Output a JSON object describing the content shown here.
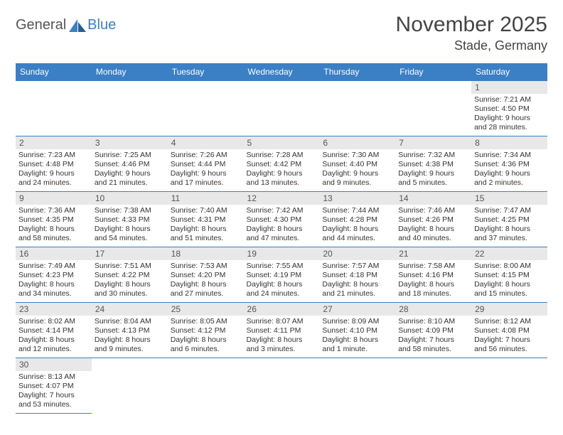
{
  "logo": {
    "part1": "General",
    "part2": "Blue"
  },
  "title": "November 2025",
  "location": "Stade, Germany",
  "colors": {
    "header_bg": "#3b7fc4",
    "header_text": "#ffffff",
    "daynum_bg": "#e8e8e8",
    "border": "#3b7fc4",
    "text": "#333333",
    "logo_gray": "#555555",
    "logo_blue": "#3b7fc4"
  },
  "day_names": [
    "Sunday",
    "Monday",
    "Tuesday",
    "Wednesday",
    "Thursday",
    "Friday",
    "Saturday"
  ],
  "weeks": [
    [
      null,
      null,
      null,
      null,
      null,
      null,
      {
        "n": "1",
        "sunrise": "Sunrise: 7:21 AM",
        "sunset": "Sunset: 4:50 PM",
        "daylight": "Daylight: 9 hours and 28 minutes."
      }
    ],
    [
      {
        "n": "2",
        "sunrise": "Sunrise: 7:23 AM",
        "sunset": "Sunset: 4:48 PM",
        "daylight": "Daylight: 9 hours and 24 minutes."
      },
      {
        "n": "3",
        "sunrise": "Sunrise: 7:25 AM",
        "sunset": "Sunset: 4:46 PM",
        "daylight": "Daylight: 9 hours and 21 minutes."
      },
      {
        "n": "4",
        "sunrise": "Sunrise: 7:26 AM",
        "sunset": "Sunset: 4:44 PM",
        "daylight": "Daylight: 9 hours and 17 minutes."
      },
      {
        "n": "5",
        "sunrise": "Sunrise: 7:28 AM",
        "sunset": "Sunset: 4:42 PM",
        "daylight": "Daylight: 9 hours and 13 minutes."
      },
      {
        "n": "6",
        "sunrise": "Sunrise: 7:30 AM",
        "sunset": "Sunset: 4:40 PM",
        "daylight": "Daylight: 9 hours and 9 minutes."
      },
      {
        "n": "7",
        "sunrise": "Sunrise: 7:32 AM",
        "sunset": "Sunset: 4:38 PM",
        "daylight": "Daylight: 9 hours and 5 minutes."
      },
      {
        "n": "8",
        "sunrise": "Sunrise: 7:34 AM",
        "sunset": "Sunset: 4:36 PM",
        "daylight": "Daylight: 9 hours and 2 minutes."
      }
    ],
    [
      {
        "n": "9",
        "sunrise": "Sunrise: 7:36 AM",
        "sunset": "Sunset: 4:35 PM",
        "daylight": "Daylight: 8 hours and 58 minutes."
      },
      {
        "n": "10",
        "sunrise": "Sunrise: 7:38 AM",
        "sunset": "Sunset: 4:33 PM",
        "daylight": "Daylight: 8 hours and 54 minutes."
      },
      {
        "n": "11",
        "sunrise": "Sunrise: 7:40 AM",
        "sunset": "Sunset: 4:31 PM",
        "daylight": "Daylight: 8 hours and 51 minutes."
      },
      {
        "n": "12",
        "sunrise": "Sunrise: 7:42 AM",
        "sunset": "Sunset: 4:30 PM",
        "daylight": "Daylight: 8 hours and 47 minutes."
      },
      {
        "n": "13",
        "sunrise": "Sunrise: 7:44 AM",
        "sunset": "Sunset: 4:28 PM",
        "daylight": "Daylight: 8 hours and 44 minutes."
      },
      {
        "n": "14",
        "sunrise": "Sunrise: 7:46 AM",
        "sunset": "Sunset: 4:26 PM",
        "daylight": "Daylight: 8 hours and 40 minutes."
      },
      {
        "n": "15",
        "sunrise": "Sunrise: 7:47 AM",
        "sunset": "Sunset: 4:25 PM",
        "daylight": "Daylight: 8 hours and 37 minutes."
      }
    ],
    [
      {
        "n": "16",
        "sunrise": "Sunrise: 7:49 AM",
        "sunset": "Sunset: 4:23 PM",
        "daylight": "Daylight: 8 hours and 34 minutes."
      },
      {
        "n": "17",
        "sunrise": "Sunrise: 7:51 AM",
        "sunset": "Sunset: 4:22 PM",
        "daylight": "Daylight: 8 hours and 30 minutes."
      },
      {
        "n": "18",
        "sunrise": "Sunrise: 7:53 AM",
        "sunset": "Sunset: 4:20 PM",
        "daylight": "Daylight: 8 hours and 27 minutes."
      },
      {
        "n": "19",
        "sunrise": "Sunrise: 7:55 AM",
        "sunset": "Sunset: 4:19 PM",
        "daylight": "Daylight: 8 hours and 24 minutes."
      },
      {
        "n": "20",
        "sunrise": "Sunrise: 7:57 AM",
        "sunset": "Sunset: 4:18 PM",
        "daylight": "Daylight: 8 hours and 21 minutes."
      },
      {
        "n": "21",
        "sunrise": "Sunrise: 7:58 AM",
        "sunset": "Sunset: 4:16 PM",
        "daylight": "Daylight: 8 hours and 18 minutes."
      },
      {
        "n": "22",
        "sunrise": "Sunrise: 8:00 AM",
        "sunset": "Sunset: 4:15 PM",
        "daylight": "Daylight: 8 hours and 15 minutes."
      }
    ],
    [
      {
        "n": "23",
        "sunrise": "Sunrise: 8:02 AM",
        "sunset": "Sunset: 4:14 PM",
        "daylight": "Daylight: 8 hours and 12 minutes."
      },
      {
        "n": "24",
        "sunrise": "Sunrise: 8:04 AM",
        "sunset": "Sunset: 4:13 PM",
        "daylight": "Daylight: 8 hours and 9 minutes."
      },
      {
        "n": "25",
        "sunrise": "Sunrise: 8:05 AM",
        "sunset": "Sunset: 4:12 PM",
        "daylight": "Daylight: 8 hours and 6 minutes."
      },
      {
        "n": "26",
        "sunrise": "Sunrise: 8:07 AM",
        "sunset": "Sunset: 4:11 PM",
        "daylight": "Daylight: 8 hours and 3 minutes."
      },
      {
        "n": "27",
        "sunrise": "Sunrise: 8:09 AM",
        "sunset": "Sunset: 4:10 PM",
        "daylight": "Daylight: 8 hours and 1 minute."
      },
      {
        "n": "28",
        "sunrise": "Sunrise: 8:10 AM",
        "sunset": "Sunset: 4:09 PM",
        "daylight": "Daylight: 7 hours and 58 minutes."
      },
      {
        "n": "29",
        "sunrise": "Sunrise: 8:12 AM",
        "sunset": "Sunset: 4:08 PM",
        "daylight": "Daylight: 7 hours and 56 minutes."
      }
    ],
    [
      {
        "n": "30",
        "sunrise": "Sunrise: 8:13 AM",
        "sunset": "Sunset: 4:07 PM",
        "daylight": "Daylight: 7 hours and 53 minutes."
      },
      null,
      null,
      null,
      null,
      null,
      null
    ]
  ]
}
